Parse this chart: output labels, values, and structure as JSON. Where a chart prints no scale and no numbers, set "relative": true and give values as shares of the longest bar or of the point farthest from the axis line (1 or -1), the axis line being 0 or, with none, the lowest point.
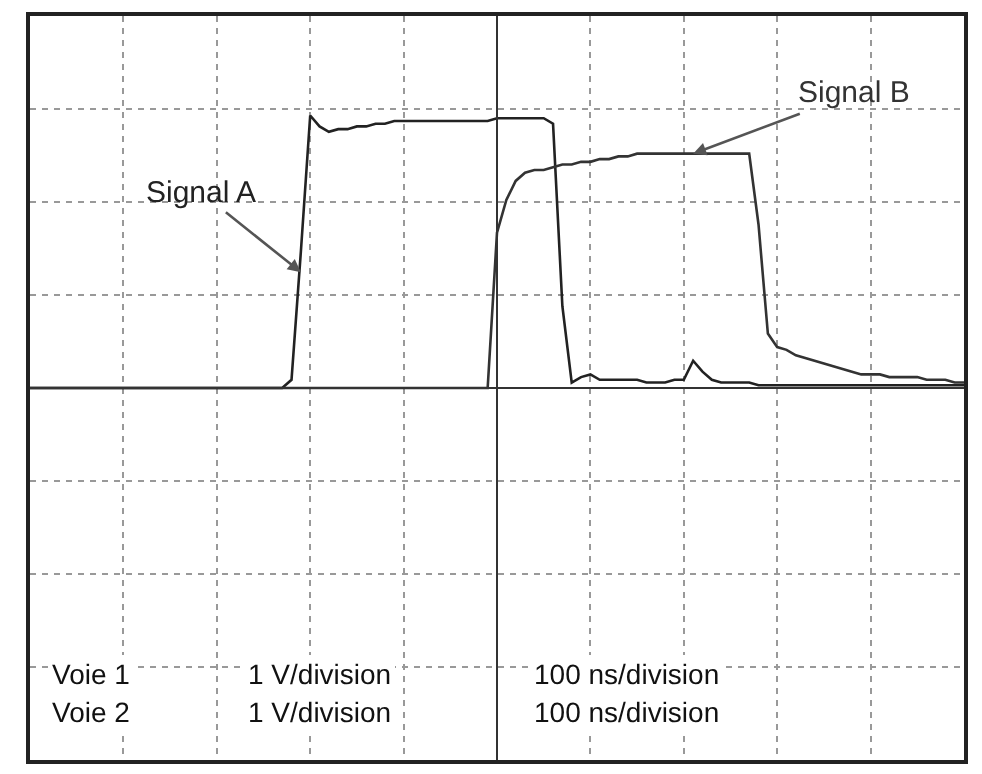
{
  "chart_data": {
    "type": "line",
    "relative": true,
    "grid": true,
    "legend": false,
    "marker": "none",
    "line_style": "solid",
    "categories": [
      null,
      null,
      null,
      null,
      null,
      null,
      null,
      null,
      null,
      null,
      null,
      null,
      null,
      null,
      null,
      null,
      null,
      null,
      null,
      null,
      null,
      null,
      null,
      null,
      null,
      null,
      null,
      null,
      null,
      null,
      null,
      null,
      null,
      null,
      null,
      null,
      null,
      null,
      null,
      null,
      null,
      null,
      null,
      null,
      null,
      null,
      null,
      null,
      null,
      null,
      null,
      null,
      null,
      null,
      null,
      null,
      null,
      null,
      null,
      null,
      null,
      null,
      null,
      null,
      null,
      null,
      null,
      null,
      null,
      null,
      null,
      null,
      null,
      null,
      null,
      null,
      null,
      null,
      null,
      null,
      null,
      null,
      null,
      null,
      null,
      null,
      null,
      null,
      null,
      null,
      null,
      null,
      null,
      null,
      null,
      null,
      null,
      null,
      null,
      null,
      null
    ],
    "series": [
      {
        "name": "Signal A",
        "color": "#222222",
        "values": [
          0,
          0,
          0,
          0,
          0,
          0,
          0,
          0,
          0,
          0,
          0,
          0,
          0,
          0,
          0,
          0,
          0,
          0,
          0,
          0,
          0,
          0,
          0,
          0,
          0,
          0,
          0,
          0,
          0.03,
          0.5,
          1.0,
          0.96,
          0.94,
          0.95,
          0.95,
          0.96,
          0.96,
          0.97,
          0.97,
          0.98,
          0.98,
          0.98,
          0.98,
          0.98,
          0.98,
          0.98,
          0.98,
          0.98,
          0.98,
          0.98,
          0.99,
          0.99,
          0.99,
          0.99,
          0.99,
          0.99,
          0.97,
          0.3,
          0.02,
          0.04,
          0.05,
          0.03,
          0.03,
          0.03,
          0.03,
          0.03,
          0.02,
          0.02,
          0.02,
          0.03,
          0.03,
          0.1,
          0.06,
          0.03,
          0.02,
          0.02,
          0.02,
          0.02,
          0.01,
          0.01,
          0.01,
          0.01,
          0.01,
          0.01,
          0.01,
          0.01,
          0.01,
          0.01,
          0.01,
          0.01,
          0.01,
          0.01,
          0.01,
          0.01,
          0.01,
          0.01,
          0.01,
          0.01,
          0.01,
          0.01,
          0.01
        ]
      },
      {
        "name": "Signal B",
        "color": "#333333",
        "values": [
          0,
          0,
          0,
          0,
          0,
          0,
          0,
          0,
          0,
          0,
          0,
          0,
          0,
          0,
          0,
          0,
          0,
          0,
          0,
          0,
          0,
          0,
          0,
          0,
          0,
          0,
          0,
          0,
          0,
          0,
          0,
          0,
          0,
          0,
          0,
          0,
          0,
          0,
          0,
          0,
          0,
          0,
          0,
          0,
          0,
          0,
          0,
          0,
          0,
          0,
          0.57,
          0.69,
          0.76,
          0.79,
          0.8,
          0.8,
          0.81,
          0.82,
          0.82,
          0.83,
          0.83,
          0.84,
          0.84,
          0.85,
          0.85,
          0.86,
          0.86,
          0.86,
          0.86,
          0.86,
          0.86,
          0.86,
          0.86,
          0.86,
          0.86,
          0.86,
          0.86,
          0.86,
          0.6,
          0.2,
          0.15,
          0.14,
          0.12,
          0.11,
          0.1,
          0.09,
          0.08,
          0.07,
          0.06,
          0.05,
          0.05,
          0.05,
          0.04,
          0.04,
          0.04,
          0.04,
          0.03,
          0.03,
          0.03,
          0.02,
          0.02
        ]
      }
    ],
    "annotations": [
      "Voie 1",
      "1 V/division",
      "100 ns/division",
      "Voie 2",
      "1 V/division",
      "100 ns/division"
    ]
  }
}
